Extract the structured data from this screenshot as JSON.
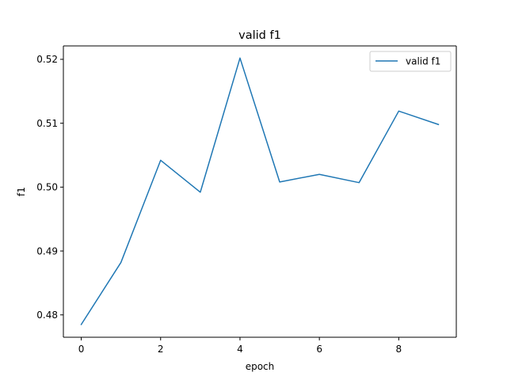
{
  "chart_data": {
    "type": "line",
    "title": "valid f1",
    "xlabel": "epoch",
    "ylabel": "f1",
    "xlim": [
      -0.45,
      9.45
    ],
    "ylim": [
      0.4765,
      0.5221
    ],
    "x_ticks": [
      0,
      2,
      4,
      6,
      8
    ],
    "x_tick_labels": [
      "0",
      "2",
      "4",
      "6",
      "8"
    ],
    "y_ticks": [
      0.48,
      0.49,
      0.5,
      0.51,
      0.52
    ],
    "y_tick_labels": [
      "0.48",
      "0.49",
      "0.50",
      "0.51",
      "0.52"
    ],
    "grid": false,
    "legend": "top-right",
    "series": [
      {
        "name": "valid f1",
        "color": "#1f77b4",
        "x": [
          0,
          1,
          2,
          3,
          4,
          5,
          6,
          7,
          8,
          9
        ],
        "values": [
          0.4785,
          0.4882,
          0.5042,
          0.4992,
          0.5202,
          0.5008,
          0.502,
          0.5007,
          0.5119,
          0.5098
        ]
      }
    ]
  }
}
